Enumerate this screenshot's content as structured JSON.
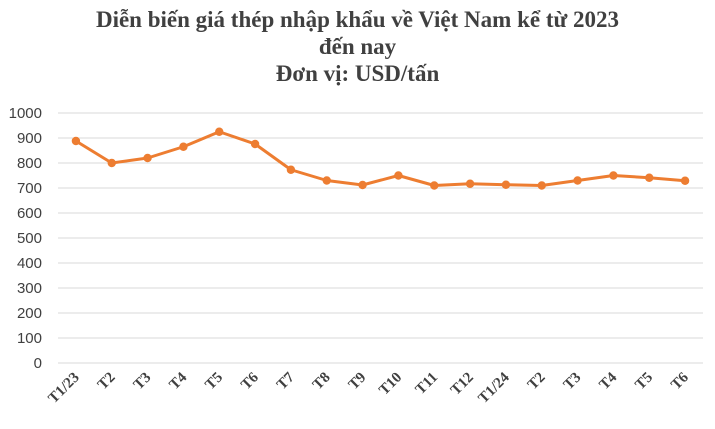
{
  "chart_data": {
    "type": "line",
    "title_lines": [
      "Diễn biến giá thép nhập khẩu về Việt Nam kể từ 2023",
      "đến nay",
      "Đơn vị: USD/tấn"
    ],
    "xlabel": "",
    "ylabel": "",
    "categories": [
      "T1/23",
      "T2",
      "T3",
      "T4",
      "T5",
      "T6",
      "T7",
      "T8",
      "T9",
      "T10",
      "T11",
      "T12",
      "T1/24",
      "T2",
      "T3",
      "T4",
      "T5",
      "T6"
    ],
    "series": [
      {
        "values": [
          888,
          800,
          820,
          865,
          925,
          876,
          773,
          730,
          712,
          750,
          710,
          717,
          713,
          710,
          730,
          750,
          741,
          729
        ]
      }
    ],
    "ylim": [
      0,
      1000
    ],
    "yticks": [
      0,
      100,
      200,
      300,
      400,
      500,
      600,
      700,
      800,
      900,
      1000
    ],
    "grid": true,
    "legend": "none",
    "colors": {
      "line": "#ED7D31",
      "grid": "#D9D9D9",
      "text": "#404040"
    }
  }
}
